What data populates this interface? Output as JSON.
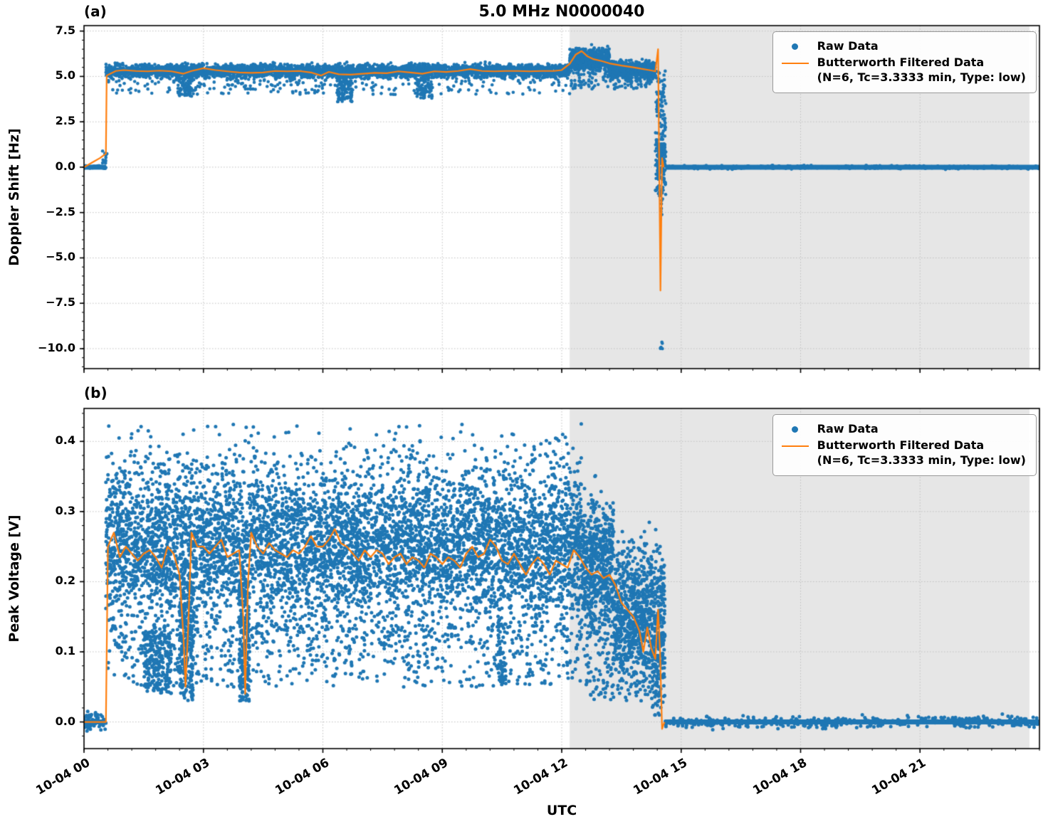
{
  "figure": {
    "title": "5.0 MHz N0000040",
    "panel_a_label": "(a)",
    "panel_b_label": "(b)",
    "colors": {
      "raw": "#1f77b4",
      "filtered": "#ff7f0e",
      "shade": "#e6e6e6",
      "grid": "#c0c0c0",
      "spine": "#000000"
    },
    "legend": {
      "raw": "Raw Data",
      "filtered_line1": "Butterworth Filtered Data",
      "filtered_line2": "(N=6, Tc=3.3333 min, Type: low)"
    },
    "x_axis": {
      "label": "UTC",
      "range_hours": [
        0,
        24
      ],
      "tick_hours": [
        0,
        3,
        6,
        9,
        12,
        15,
        18,
        21
      ],
      "tick_labels": [
        "10-04 00",
        "10-04 03",
        "10-04 06",
        "10-04 09",
        "10-04 12",
        "10-04 15",
        "10-04 18",
        "10-04 21"
      ],
      "shade_hours": [
        12.2,
        23.75
      ]
    }
  },
  "chart_data": [
    {
      "panel": "a",
      "label": "(a)",
      "type": "scatter+line",
      "ylabel": "Doppler Shift [Hz]",
      "ylim": [
        -11.1,
        7.8
      ],
      "yticks": [
        7.5,
        5.0,
        2.5,
        0.0,
        -2.5,
        -5.0,
        -7.5,
        -10.0
      ],
      "series": {
        "raw": {
          "name": "Raw Data",
          "bands": [
            {
              "t0": 0.0,
              "t1": 0.55,
              "c": 0.0,
              "s": 0.04,
              "n": 200,
              "solid": true
            },
            {
              "t0": 0.55,
              "t1": 12.2,
              "c": 5.3,
              "s": 0.18,
              "n": 3400
            },
            {
              "t0": 12.2,
              "t1": 13.2,
              "c": 5.9,
              "s": 0.3,
              "n": 650
            },
            {
              "t0": 13.2,
              "t1": 14.35,
              "c": 5.35,
              "s": 0.25,
              "n": 600
            },
            {
              "t0": 14.6,
              "t1": 24.0,
              "c": 0.0,
              "s": 0.045,
              "n": 1200,
              "solid": true
            }
          ],
          "outliers": [
            {
              "t0": 0.42,
              "t1": 0.58,
              "ymin": 0.2,
              "ymax": 0.9,
              "n": 12
            },
            {
              "t0": 0.6,
              "t1": 12.2,
              "ymin": 4.0,
              "ymax": 5.0,
              "n": 260
            },
            {
              "t0": 2.35,
              "t1": 2.75,
              "ymin": 3.9,
              "ymax": 5.0,
              "n": 90
            },
            {
              "t0": 6.35,
              "t1": 6.75,
              "ymin": 3.6,
              "ymax": 5.0,
              "n": 110
            },
            {
              "t0": 8.35,
              "t1": 8.75,
              "ymin": 3.8,
              "ymax": 5.0,
              "n": 80
            },
            {
              "t0": 12.2,
              "t1": 14.3,
              "ymin": 4.3,
              "ymax": 5.2,
              "n": 110
            },
            {
              "t0": 14.35,
              "t1": 14.62,
              "ymin": -1.6,
              "ymax": 5.3,
              "n": 150
            },
            {
              "t0": 14.4,
              "t1": 14.6,
              "ymin": -0.7,
              "ymax": 1.3,
              "n": 120
            },
            {
              "t0": 14.46,
              "t1": 14.54,
              "ymin": -2.9,
              "ymax": -1.2,
              "n": 10
            },
            {
              "t0": 14.47,
              "t1": 14.53,
              "ymin": -10.2,
              "ymax": -9.6,
              "n": 6
            }
          ]
        },
        "filtered": {
          "name": "Butterworth Filtered Data (N=6, Tc=3.3333 min, Type: low)",
          "points": [
            [
              0.0,
              0.0
            ],
            [
              0.2,
              0.25
            ],
            [
              0.4,
              0.5
            ],
            [
              0.55,
              0.75
            ],
            [
              0.57,
              5.05
            ],
            [
              0.8,
              5.3
            ],
            [
              1.0,
              5.35
            ],
            [
              1.3,
              5.3
            ],
            [
              1.6,
              5.28
            ],
            [
              1.9,
              5.32
            ],
            [
              2.2,
              5.28
            ],
            [
              2.5,
              5.15
            ],
            [
              2.7,
              5.3
            ],
            [
              3.0,
              5.45
            ],
            [
              3.3,
              5.35
            ],
            [
              3.6,
              5.28
            ],
            [
              3.9,
              5.22
            ],
            [
              4.2,
              5.2
            ],
            [
              4.5,
              5.22
            ],
            [
              4.8,
              5.3
            ],
            [
              5.1,
              5.28
            ],
            [
              5.4,
              5.3
            ],
            [
              5.7,
              5.22
            ],
            [
              5.95,
              5.05
            ],
            [
              6.15,
              5.25
            ],
            [
              6.4,
              5.12
            ],
            [
              6.7,
              5.1
            ],
            [
              7.0,
              5.15
            ],
            [
              7.3,
              5.2
            ],
            [
              7.6,
              5.18
            ],
            [
              7.9,
              5.28
            ],
            [
              8.2,
              5.22
            ],
            [
              8.5,
              5.15
            ],
            [
              8.8,
              5.28
            ],
            [
              9.1,
              5.25
            ],
            [
              9.4,
              5.3
            ],
            [
              9.7,
              5.4
            ],
            [
              10.0,
              5.3
            ],
            [
              10.3,
              5.28
            ],
            [
              10.6,
              5.3
            ],
            [
              10.9,
              5.3
            ],
            [
              11.2,
              5.28
            ],
            [
              11.5,
              5.3
            ],
            [
              11.8,
              5.3
            ],
            [
              12.0,
              5.35
            ],
            [
              12.2,
              5.7
            ],
            [
              12.35,
              6.2
            ],
            [
              12.5,
              6.4
            ],
            [
              12.65,
              6.1
            ],
            [
              12.8,
              5.95
            ],
            [
              13.0,
              5.85
            ],
            [
              13.2,
              5.72
            ],
            [
              13.5,
              5.6
            ],
            [
              13.8,
              5.5
            ],
            [
              14.0,
              5.42
            ],
            [
              14.2,
              5.35
            ],
            [
              14.35,
              5.28
            ],
            [
              14.42,
              6.5
            ],
            [
              14.48,
              -6.8
            ],
            [
              14.52,
              0.5
            ],
            [
              14.56,
              0.0
            ]
          ]
        }
      }
    },
    {
      "panel": "b",
      "label": "(b)",
      "type": "scatter+line",
      "ylabel": "Peak Voltage [V]",
      "ylim": [
        -0.038,
        0.447
      ],
      "yticks": [
        0.4,
        0.3,
        0.2,
        0.1,
        0.0
      ],
      "series": {
        "raw": {
          "name": "Raw Data",
          "bands": [
            {
              "t0": 0.0,
              "t1": 0.55,
              "c": 0.0,
              "s": 0.006,
              "n": 200,
              "solid": true
            },
            {
              "t0": 0.55,
              "t1": 12.5,
              "c": 0.25,
              "s": 0.055,
              "n": 6200,
              "ymin": 0.02,
              "ymax": 0.425
            },
            {
              "t0": 12.5,
              "t1": 13.3,
              "c": 0.215,
              "s": 0.05,
              "n": 600,
              "ymin": 0.02,
              "ymax": 0.36
            },
            {
              "t0": 13.3,
              "t1": 14.25,
              "c": 0.155,
              "s": 0.045,
              "n": 650,
              "ymin": 0.02,
              "ymax": 0.31
            },
            {
              "t0": 14.25,
              "t1": 14.6,
              "c": 0.13,
              "s": 0.055,
              "n": 280,
              "ymin": 0.01,
              "ymax": 0.3
            },
            {
              "t0": 14.6,
              "t1": 24.0,
              "c": 0.0,
              "s": 0.004,
              "n": 1200,
              "solid": true
            }
          ],
          "outliers": [
            {
              "t0": 0.6,
              "t1": 12.5,
              "ymin": 0.05,
              "ymax": 0.14,
              "n": 650
            },
            {
              "t0": 1.5,
              "t1": 2.2,
              "ymin": 0.04,
              "ymax": 0.13,
              "n": 220
            },
            {
              "t0": 2.4,
              "t1": 2.75,
              "ymin": 0.03,
              "ymax": 0.2,
              "n": 240
            },
            {
              "t0": 3.9,
              "t1": 4.15,
              "ymin": 0.03,
              "ymax": 0.2,
              "n": 200
            },
            {
              "t0": 0.6,
              "t1": 12.5,
              "ymin": 0.355,
              "ymax": 0.425,
              "n": 130
            },
            {
              "t0": 12.6,
              "t1": 14.5,
              "ymin": 0.03,
              "ymax": 0.1,
              "n": 140
            },
            {
              "t0": 10.4,
              "t1": 10.6,
              "ymin": 0.05,
              "ymax": 0.15,
              "n": 60
            }
          ]
        },
        "filtered": {
          "name": "Butterworth Filtered Data (N=6, Tc=3.3333 min, Type: low)",
          "points": [
            [
              0.0,
              0.0
            ],
            [
              0.55,
              0.0
            ],
            [
              0.6,
              0.25
            ],
            [
              0.75,
              0.27
            ],
            [
              0.9,
              0.235
            ],
            [
              1.05,
              0.25
            ],
            [
              1.2,
              0.24
            ],
            [
              1.35,
              0.23
            ],
            [
              1.5,
              0.24
            ],
            [
              1.65,
              0.245
            ],
            [
              1.8,
              0.235
            ],
            [
              1.95,
              0.22
            ],
            [
              2.1,
              0.25
            ],
            [
              2.25,
              0.24
            ],
            [
              2.4,
              0.21
            ],
            [
              2.5,
              0.12
            ],
            [
              2.55,
              0.05
            ],
            [
              2.62,
              0.14
            ],
            [
              2.7,
              0.27
            ],
            [
              2.85,
              0.25
            ],
            [
              3.0,
              0.25
            ],
            [
              3.15,
              0.24
            ],
            [
              3.3,
              0.25
            ],
            [
              3.45,
              0.26
            ],
            [
              3.6,
              0.235
            ],
            [
              3.75,
              0.24
            ],
            [
              3.9,
              0.245
            ],
            [
              4.0,
              0.15
            ],
            [
              4.05,
              0.04
            ],
            [
              4.12,
              0.2
            ],
            [
              4.2,
              0.27
            ],
            [
              4.35,
              0.25
            ],
            [
              4.5,
              0.24
            ],
            [
              4.65,
              0.255
            ],
            [
              4.8,
              0.245
            ],
            [
              4.95,
              0.24
            ],
            [
              5.1,
              0.235
            ],
            [
              5.25,
              0.245
            ],
            [
              5.4,
              0.24
            ],
            [
              5.55,
              0.25
            ],
            [
              5.7,
              0.265
            ],
            [
              5.85,
              0.25
            ],
            [
              6.0,
              0.25
            ],
            [
              6.15,
              0.26
            ],
            [
              6.3,
              0.275
            ],
            [
              6.45,
              0.255
            ],
            [
              6.6,
              0.25
            ],
            [
              6.75,
              0.24
            ],
            [
              6.9,
              0.23
            ],
            [
              7.05,
              0.245
            ],
            [
              7.2,
              0.235
            ],
            [
              7.35,
              0.245
            ],
            [
              7.5,
              0.24
            ],
            [
              7.65,
              0.225
            ],
            [
              7.8,
              0.235
            ],
            [
              7.95,
              0.24
            ],
            [
              8.1,
              0.225
            ],
            [
              8.25,
              0.235
            ],
            [
              8.4,
              0.23
            ],
            [
              8.55,
              0.22
            ],
            [
              8.7,
              0.24
            ],
            [
              8.85,
              0.235
            ],
            [
              9.0,
              0.225
            ],
            [
              9.15,
              0.235
            ],
            [
              9.3,
              0.23
            ],
            [
              9.45,
              0.22
            ],
            [
              9.6,
              0.24
            ],
            [
              9.75,
              0.25
            ],
            [
              9.9,
              0.235
            ],
            [
              10.05,
              0.24
            ],
            [
              10.2,
              0.26
            ],
            [
              10.35,
              0.25
            ],
            [
              10.5,
              0.23
            ],
            [
              10.65,
              0.225
            ],
            [
              10.8,
              0.24
            ],
            [
              10.95,
              0.225
            ],
            [
              11.1,
              0.21
            ],
            [
              11.25,
              0.225
            ],
            [
              11.4,
              0.235
            ],
            [
              11.55,
              0.225
            ],
            [
              11.7,
              0.21
            ],
            [
              11.85,
              0.23
            ],
            [
              12.0,
              0.225
            ],
            [
              12.15,
              0.22
            ],
            [
              12.3,
              0.245
            ],
            [
              12.45,
              0.235
            ],
            [
              12.6,
              0.22
            ],
            [
              12.75,
              0.21
            ],
            [
              12.9,
              0.215
            ],
            [
              13.05,
              0.205
            ],
            [
              13.2,
              0.21
            ],
            [
              13.35,
              0.195
            ],
            [
              13.5,
              0.17
            ],
            [
              13.65,
              0.16
            ],
            [
              13.8,
              0.15
            ],
            [
              13.95,
              0.13
            ],
            [
              14.05,
              0.1
            ],
            [
              14.15,
              0.135
            ],
            [
              14.25,
              0.105
            ],
            [
              14.35,
              0.09
            ],
            [
              14.42,
              0.16
            ],
            [
              14.47,
              0.1
            ],
            [
              14.52,
              -0.01
            ],
            [
              14.58,
              0.0
            ]
          ]
        }
      }
    }
  ]
}
